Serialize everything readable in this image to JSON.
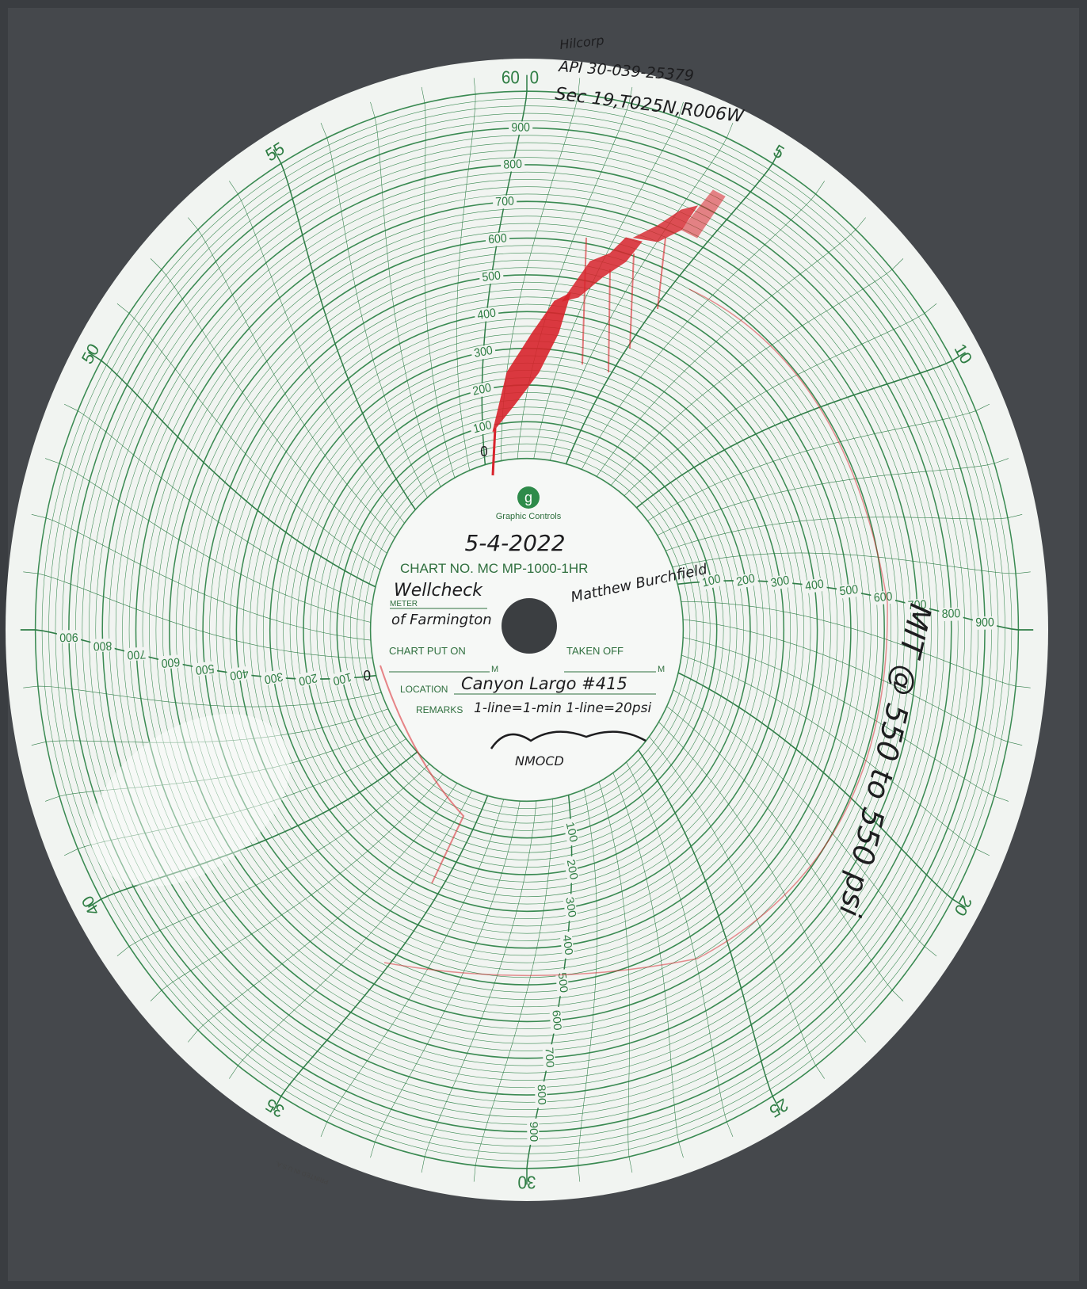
{
  "header_note": {
    "company": "Hilcorp",
    "api": "API 30-039-25379",
    "legal": "Sec 19,T025N,R006W"
  },
  "dial": {
    "top_labels": [
      "60",
      "0"
    ],
    "minute_labels": [
      5,
      10,
      20,
      25,
      30,
      35,
      40,
      50,
      55
    ],
    "pressure_labels": [
      100,
      200,
      300,
      400,
      500,
      600,
      700,
      800,
      900
    ],
    "zero_label": "0"
  },
  "brand": {
    "logo": "g",
    "name": "Graphic Controls"
  },
  "form": {
    "date": "5-4-2022",
    "chart_no": "CHART NO. MC MP-1000-1HR",
    "meter_value": "Wellcheck",
    "meter_label": "METER",
    "meter_value2": "of Farmington",
    "signature_top": "Matthew Burchfield",
    "chart_put_on": "CHART PUT ON",
    "taken_off": "TAKEN OFF",
    "m": "M",
    "location_label": "LOCATION",
    "location_value": "Canyon Largo #415",
    "remarks_label": "REMARKS",
    "remarks_value": "1-line=1-min 1-line=20psi",
    "signature_bottom": "NMOCD"
  },
  "side_note": "MIT @ 550 to 550 psi",
  "imprint": "PRINTED IN U.S.A."
}
